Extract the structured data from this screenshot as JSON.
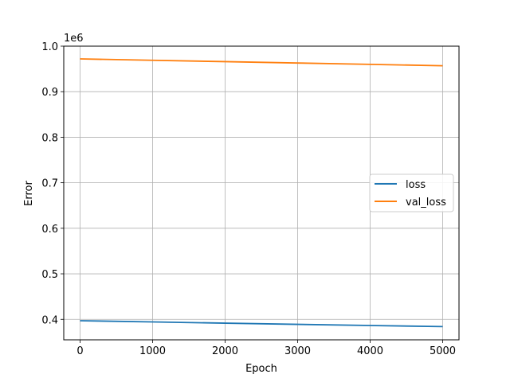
{
  "chart_data": {
    "type": "line",
    "title": "",
    "xlabel": "Epoch",
    "ylabel": "Error",
    "y_offset_label": "1e6",
    "xlim": [
      -225,
      5225
    ],
    "ylim": [
      355000,
      1000000
    ],
    "xticks": [
      0,
      1000,
      2000,
      3000,
      4000,
      5000
    ],
    "xtick_labels": [
      "0",
      "1000",
      "2000",
      "3000",
      "4000",
      "5000"
    ],
    "yticks": [
      400000,
      500000,
      600000,
      700000,
      800000,
      900000,
      1000000
    ],
    "ytick_labels": [
      "0.4",
      "0.5",
      "0.6",
      "0.7",
      "0.8",
      "0.9",
      "1.0"
    ],
    "grid": true,
    "legend_position": "center-right",
    "series": [
      {
        "name": "loss",
        "color": "#1f77b4",
        "x": [
          0,
          1000,
          2000,
          3000,
          4000,
          5000
        ],
        "values": [
          397000,
          394300,
          391600,
          389000,
          386500,
          384000
        ]
      },
      {
        "name": "val_loss",
        "color": "#ff7f0e",
        "x": [
          0,
          1000,
          2000,
          3000,
          4000,
          5000
        ],
        "values": [
          972000,
          969000,
          966000,
          963000,
          960000,
          957000
        ]
      }
    ]
  }
}
